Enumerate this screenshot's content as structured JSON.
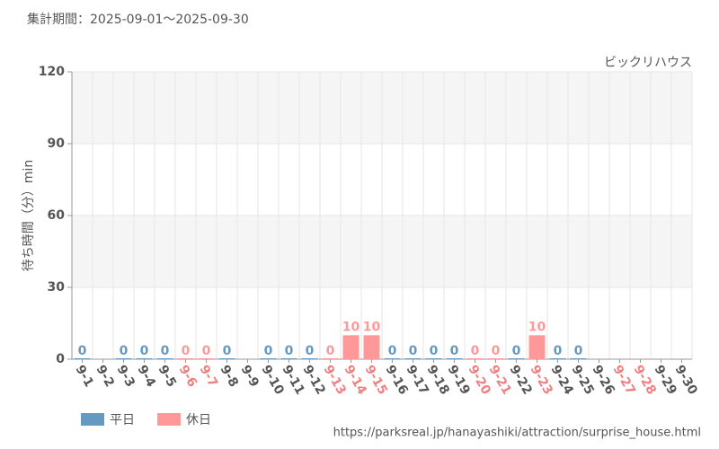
{
  "chart_data": {
    "type": "bar",
    "title": "集計期間：2025-09-01～2025-09-30",
    "subtitle": "ビックリハウス",
    "y_label": "待ち時間（分）min",
    "source": "https://parksreal.jp/hanayashiki/attraction/surprise_house.html",
    "categories": [
      "9-1",
      "9-2",
      "9-3",
      "9-4",
      "9-5",
      "9-6",
      "9-7",
      "9-8",
      "9-9",
      "9-10",
      "9-11",
      "9-12",
      "9-13",
      "9-14",
      "9-15",
      "9-16",
      "9-17",
      "9-18",
      "9-19",
      "9-20",
      "9-21",
      "9-22",
      "9-23",
      "9-24",
      "9-25",
      "9-26",
      "9-27",
      "9-28",
      "9-29",
      "9-30"
    ],
    "category_colors": [
      "#555",
      "#555",
      "#555",
      "#555",
      "#555",
      "#f08080",
      "#f08080",
      "#555",
      "#555",
      "#555",
      "#555",
      "#555",
      "#f08080",
      "#f08080",
      "#f08080",
      "#555",
      "#555",
      "#555",
      "#555",
      "#f08080",
      "#f08080",
      "#555",
      "#f08080",
      "#555",
      "#555",
      "#555",
      "#f08080",
      "#f08080",
      "#555",
      "#555"
    ],
    "series": [
      {
        "name": "平日",
        "color": "#6699c2",
        "values": [
          0,
          null,
          0,
          0,
          0,
          null,
          null,
          0,
          null,
          0,
          0,
          0,
          null,
          null,
          null,
          0,
          0,
          0,
          0,
          null,
          null,
          0,
          null,
          0,
          0,
          null,
          null,
          null,
          null,
          null
        ]
      },
      {
        "name": "休日",
        "color": "#ff9999",
        "values": [
          null,
          null,
          null,
          null,
          null,
          0,
          0,
          null,
          null,
          null,
          null,
          null,
          0,
          10,
          10,
          null,
          null,
          null,
          null,
          0,
          0,
          null,
          10,
          null,
          null,
          null,
          null,
          null,
          null,
          null
        ]
      }
    ],
    "ylim": [
      0,
      120
    ],
    "yticks": [
      0,
      30,
      60,
      90,
      120
    ],
    "grid": true
  }
}
